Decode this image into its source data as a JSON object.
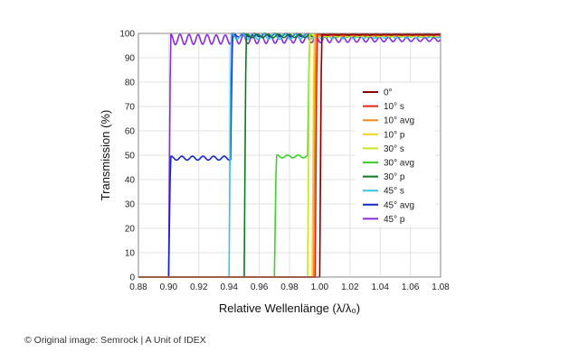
{
  "chart_data": {
    "type": "line",
    "xlabel": "Relative Wellenlänge (λ/λ₀)",
    "ylabel": "Transmission (%)",
    "xlim": [
      0.88,
      1.08
    ],
    "ylim": [
      0,
      100
    ],
    "x_ticks": [
      "0.88",
      "0.90",
      "0.92",
      "0.94",
      "0.96",
      "0.98",
      "1.00",
      "1.02",
      "1.04",
      "1.06",
      "1.08"
    ],
    "y_ticks": [
      "0",
      "10",
      "20",
      "30",
      "40",
      "50",
      "60",
      "70",
      "80",
      "90",
      "100"
    ],
    "grid": true,
    "legend_position": "right-center",
    "series": [
      {
        "name": "0°",
        "color": "#8b0000",
        "edge": 1.0,
        "plateau": 99.5,
        "wave_amp": 0.3,
        "wave_period": 0.007
      },
      {
        "name": "10° s",
        "color": "#e8231a",
        "edge": 0.997,
        "plateau": 99.5,
        "wave_amp": 0.3,
        "wave_period": 0.007
      },
      {
        "name": "10° avg",
        "color": "#f08a1c",
        "edge": 0.996,
        "plateau": 99.3,
        "wave_amp": 0.4,
        "wave_period": 0.007
      },
      {
        "name": "10° p",
        "color": "#f2d21c",
        "edge": 0.995,
        "plateau": 99.2,
        "wave_amp": 0.5,
        "wave_period": 0.007
      },
      {
        "name": "30° s",
        "color": "#c8e61c",
        "edge": 0.992,
        "plateau": 99.2,
        "wave_amp": 0.6,
        "wave_period": 0.007
      },
      {
        "name": "30° avg",
        "color": "#3cd22a",
        "edge": 0.97,
        "step_level": 49.5,
        "second_edge": 0.992,
        "plateau": 99.0,
        "wave_amp": 0.6,
        "wave_period": 0.007
      },
      {
        "name": "30° p",
        "color": "#0a7a1e",
        "edge": 0.95,
        "plateau": 99.0,
        "wave_amp": 0.8,
        "wave_period": 0.007
      },
      {
        "name": "45° s",
        "color": "#35c3e8",
        "edge": 0.94,
        "plateau": 98.8,
        "wave_amp": 1.4,
        "wave_period": 0.007
      },
      {
        "name": "45° avg",
        "color": "#1425c8",
        "edge": 0.9,
        "step_level": 48.8,
        "second_edge": 0.941,
        "plateau": 99.3,
        "wave_amp": 0.8,
        "wave_period": 0.007
      },
      {
        "name": "45° p",
        "color": "#8a2be2",
        "edge": 0.9,
        "plateau": 97.5,
        "wave_amp": 2.2,
        "wave_period": 0.006
      }
    ]
  },
  "credit": "© Original image: Semrock | A Unit of IDEX"
}
